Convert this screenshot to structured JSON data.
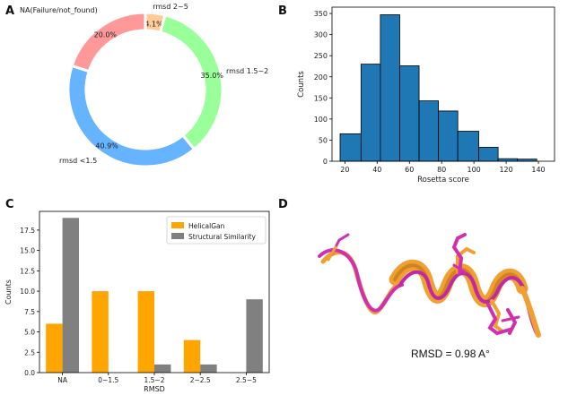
{
  "panels": {
    "a": {
      "letter": "A"
    },
    "b": {
      "letter": "B"
    },
    "c": {
      "letter": "C"
    },
    "d": {
      "letter": "D",
      "caption": "RMSD = 0.98 A°"
    }
  },
  "chart_data": [
    {
      "panel": "A",
      "type": "pie",
      "variant": "donut",
      "title": "",
      "slices": [
        {
          "label": "rmsd 2~5",
          "value": 4.1,
          "pct_label": "4.1%",
          "color": "#ffcc99"
        },
        {
          "label": "rmsd 1.5~2",
          "value": 35.0,
          "pct_label": "35.0%",
          "color": "#99ff99"
        },
        {
          "label": "rmsd <1.5",
          "value": 40.9,
          "pct_label": "40.9%",
          "color": "#66b3ff"
        },
        {
          "label": "NA(Failure/not_found)",
          "value": 20.0,
          "pct_label": "20.0%",
          "color": "#ff9999"
        }
      ]
    },
    {
      "panel": "B",
      "type": "bar",
      "variant": "histogram",
      "title": "",
      "xlabel": "Rosetta score",
      "ylabel": "Counts",
      "bin_edges": [
        17,
        30,
        42,
        54,
        66,
        78,
        90,
        103,
        115,
        127,
        139
      ],
      "counts": [
        65,
        230,
        347,
        226,
        143,
        119,
        71,
        33,
        6,
        5
      ],
      "xlim": [
        12,
        150
      ],
      "ylim": [
        0,
        365
      ],
      "xticks": [
        20,
        40,
        60,
        80,
        100,
        120,
        140
      ],
      "yticks": [
        0,
        50,
        100,
        150,
        200,
        250,
        300,
        350
      ],
      "color": "#1f77b4",
      "edge_color": "#000000"
    },
    {
      "panel": "C",
      "type": "bar",
      "title": "",
      "xlabel": "RMSD",
      "ylabel": "Counts",
      "categories": [
        "NA",
        "0~1.5",
        "1.5~2",
        "2~2.5",
        "2.5~5"
      ],
      "series": [
        {
          "name": "HelicalGan",
          "values": [
            6,
            10,
            10,
            4,
            0
          ],
          "color": "#ffa500"
        },
        {
          "name": "Structural Similarity",
          "values": [
            19,
            0,
            1,
            1,
            9
          ],
          "color": "#808080"
        }
      ],
      "ylim": [
        0,
        19.8
      ],
      "yticks": [
        0.0,
        2.5,
        5.0,
        7.5,
        10.0,
        12.5,
        15.0,
        17.5
      ],
      "ytick_labels": [
        "0.0",
        "2.5",
        "5.0",
        "7.5",
        "10.0",
        "12.5",
        "15.0",
        "17.5"
      ],
      "legend_position": "top-right"
    }
  ]
}
